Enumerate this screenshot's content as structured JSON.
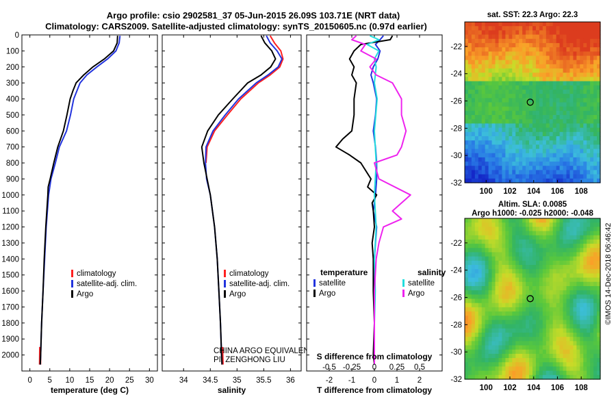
{
  "header": {
    "line1": "Argo profile: csio 2902581_37 05-Jun-2015 26.09S 103.71E (NRT data)",
    "line2": "Climatology: CARS2009. Satellite-adjusted climatology: synTS_20150605.nc (0.97d earlier)"
  },
  "colors": {
    "climatology": "#ff2020",
    "satellite": "#2233dd",
    "argo": "#000000",
    "cyan": "#22dddd",
    "magenta": "#ee22ee"
  },
  "chart_data": [
    {
      "type": "line",
      "id": "temperature",
      "xlabel": "temperature (deg C)",
      "ylabel": "",
      "xlim": [
        -2,
        32
      ],
      "ylim": [
        2100,
        0
      ],
      "xticks": [
        0,
        5,
        10,
        15,
        20,
        25,
        30
      ],
      "yticks": [
        0,
        100,
        200,
        300,
        400,
        500,
        600,
        700,
        800,
        900,
        1000,
        1100,
        1200,
        1300,
        1400,
        1500,
        1600,
        1700,
        1800,
        1900,
        2000
      ],
      "legend": [
        "climatology",
        "satellite-adj. clim.",
        "Argo"
      ],
      "series": [
        {
          "name": "climatology",
          "color": "#ff2020",
          "depth": [
            1950,
            2060
          ],
          "values": [
            2.6,
            2.55
          ]
        },
        {
          "name": "satellite-adj. clim.",
          "color": "#2233dd",
          "depth": [
            5,
            50,
            100,
            150,
            200,
            250,
            300,
            400,
            500,
            600,
            700,
            800,
            900,
            1000,
            1200,
            1400,
            1600,
            1800,
            2000,
            2060
          ],
          "values": [
            22.6,
            22.4,
            21.6,
            19.5,
            16.8,
            14.3,
            12.6,
            11.0,
            10.2,
            9.2,
            7.4,
            6.4,
            5.3,
            4.7,
            4.1,
            3.7,
            3.3,
            2.95,
            2.7,
            2.6
          ]
        },
        {
          "name": "Argo",
          "color": "#000000",
          "depth": [
            5,
            50,
            100,
            150,
            200,
            250,
            300,
            350,
            400,
            500,
            600,
            700,
            800,
            900,
            950,
            1000,
            1200,
            1400,
            1600,
            1800,
            2000,
            2060
          ],
          "values": [
            22.0,
            21.9,
            21.0,
            18.7,
            15.8,
            13.5,
            11.6,
            10.8,
            10.1,
            9.3,
            8.4,
            7.0,
            6.0,
            5.1,
            4.6,
            4.5,
            4.0,
            3.6,
            3.3,
            2.95,
            2.7,
            2.6
          ]
        }
      ]
    },
    {
      "type": "line",
      "id": "salinity",
      "xlabel": "salinity",
      "ylabel": "",
      "xlim": [
        33.6,
        36.2
      ],
      "ylim": [
        2100,
        0
      ],
      "xticks": [
        34,
        34.5,
        35,
        35.5,
        36
      ],
      "legend": [
        "climatology",
        "satellite-adj. clim.",
        "Argo"
      ],
      "series": [
        {
          "name": "climatology",
          "color": "#ff2020",
          "depth": [
            5,
            50,
            100,
            150,
            200,
            250,
            300,
            400,
            500,
            600,
            700,
            800
          ],
          "values": [
            35.62,
            35.7,
            35.82,
            35.86,
            35.8,
            35.62,
            35.4,
            35.07,
            34.82,
            34.58,
            34.44,
            34.42
          ],
          "extra": {
            "depth": [
              1950,
              2060
            ],
            "values": [
              34.72,
              34.73
            ]
          }
        },
        {
          "name": "satellite-adj. clim.",
          "color": "#2233dd",
          "depth": [
            5,
            50,
            100,
            150,
            200,
            250,
            300,
            400,
            500,
            600,
            700,
            800,
            900,
            1000,
            1200,
            1400,
            1600,
            1800,
            2000,
            2060
          ],
          "values": [
            35.55,
            35.62,
            35.75,
            35.84,
            35.77,
            35.58,
            35.36,
            35.03,
            34.78,
            34.55,
            34.42,
            34.41,
            34.43,
            34.5,
            34.58,
            34.63,
            34.66,
            34.69,
            34.71,
            34.72
          ]
        },
        {
          "name": "Argo",
          "color": "#000000",
          "depth": [
            5,
            50,
            100,
            150,
            200,
            250,
            300,
            400,
            500,
            600,
            700,
            800,
            900,
            1000,
            1200,
            1400,
            1600,
            1800,
            2000,
            2060
          ],
          "values": [
            35.45,
            35.52,
            35.65,
            35.72,
            35.63,
            35.45,
            35.2,
            34.92,
            34.65,
            34.45,
            34.34,
            34.38,
            34.44,
            34.5,
            34.58,
            34.63,
            34.66,
            34.69,
            34.71,
            34.72
          ]
        }
      ],
      "annotation": [
        "CHINA ARGO EQUIVALENT",
        "PI: ZENGHONG LIU"
      ]
    },
    {
      "type": "line",
      "id": "difference",
      "xlabel": "T difference from climatology",
      "x2label": "S difference from climatology",
      "xlim": [
        -3,
        3
      ],
      "ylim": [
        2100,
        0
      ],
      "xticks": [
        -2,
        -1,
        0,
        1,
        2
      ],
      "xticks2": [
        -0.5,
        -0.25,
        0,
        0.25,
        0.5
      ],
      "xticks2_labels": [
        "-0.5",
        "-0.25",
        "0",
        "0.25",
        "0.5"
      ],
      "legend_temperature_title": "temperature",
      "legend_salinity_title": "salinity",
      "legend_items": [
        "satellite",
        "Argo",
        "satellite",
        "Argo"
      ],
      "series": [
        {
          "name": "T satellite",
          "color": "#2233dd",
          "depth": [
            5,
            30,
            60,
            100,
            150,
            200,
            250,
            300,
            400,
            500,
            600,
            700,
            800,
            900,
            1000,
            1100,
            1200,
            1300,
            1400,
            1600,
            1800,
            2000,
            2060
          ],
          "values": [
            0.4,
            0.25,
            0.05,
            0.25,
            0.15,
            -0.05,
            -0.15,
            -0.05,
            0.1,
            0.05,
            -0.05,
            0.05,
            0.1,
            0.1,
            0.05,
            -0.05,
            0.1,
            0.05,
            0.0,
            0.0,
            0.0,
            0.0,
            0.0
          ]
        },
        {
          "name": "T Argo",
          "color": "#000000",
          "depth": [
            5,
            30,
            60,
            100,
            150,
            200,
            250,
            300,
            400,
            500,
            600,
            650,
            700,
            750,
            800,
            900,
            950,
            1000,
            1050,
            1100,
            1200,
            1300,
            1400,
            1600,
            1800,
            2000,
            2060
          ],
          "values": [
            0.8,
            0.7,
            -0.6,
            -0.9,
            -1.1,
            -0.9,
            -1.0,
            -0.8,
            -0.9,
            -0.9,
            -1.0,
            -1.4,
            -1.7,
            -1.1,
            -0.6,
            -0.15,
            -0.3,
            0.1,
            -0.1,
            -0.05,
            0.0,
            -0.1,
            -0.05,
            -0.05,
            0.0,
            -0.05,
            0.0
          ]
        },
        {
          "name": "S satellite",
          "color": "#22dddd",
          "depth": [
            5,
            30,
            60,
            100,
            150,
            200,
            300,
            400,
            600,
            800,
            1000,
            1200,
            1400,
            1600,
            1800,
            2000,
            2060
          ],
          "values": [
            -0.05,
            0.05,
            -0.08,
            0.05,
            0.0,
            0.02,
            0.0,
            0.03,
            0.0,
            0.02,
            0.0,
            0.02,
            0.0,
            0.01,
            0.0,
            0.0,
            0.0
          ]
        },
        {
          "name": "S Argo",
          "color": "#ee22ee",
          "depth": [
            5,
            30,
            60,
            100,
            150,
            200,
            250,
            300,
            400,
            500,
            600,
            700,
            750,
            800,
            900,
            1000,
            1100,
            1150,
            1200,
            1300,
            1400,
            1600,
            1800,
            2000,
            2060
          ],
          "values": [
            -0.2,
            -0.25,
            -0.1,
            -0.15,
            0.02,
            -0.05,
            0.02,
            0.2,
            0.3,
            0.3,
            0.35,
            0.3,
            0.25,
            0.0,
            0.05,
            0.4,
            0.2,
            0.3,
            0.1,
            0.05,
            0.02,
            0.0,
            0.0,
            0.0,
            0.0
          ]
        }
      ]
    },
    {
      "type": "heatmap",
      "id": "sst",
      "title": "sat. SST: 22.3 Argo: 22.3",
      "xticks": [
        100,
        102,
        104,
        106,
        108
      ],
      "yticks": [
        -22,
        -24,
        -26,
        -28,
        -30,
        -32
      ],
      "xlim": [
        98.2,
        109.6
      ],
      "ylim": [
        -32,
        -20.2
      ],
      "marker": [
        103.71,
        -26.09
      ]
    },
    {
      "type": "heatmap",
      "id": "sla",
      "title": "Altim. SLA: 0.0085",
      "subtitle": "Argo h1000: -0.025 h2000: -0.048",
      "xticks": [
        100,
        102,
        104,
        106,
        108
      ],
      "yticks": [
        -22,
        -24,
        -26,
        -28,
        -30,
        -32
      ],
      "xlim": [
        98.2,
        109.6
      ],
      "ylim": [
        -32,
        -20.2
      ],
      "marker": [
        103.71,
        -26.09
      ]
    }
  ],
  "footer": {
    "stamp": "©IMOS 14-Dec-2018 06:46:42"
  }
}
